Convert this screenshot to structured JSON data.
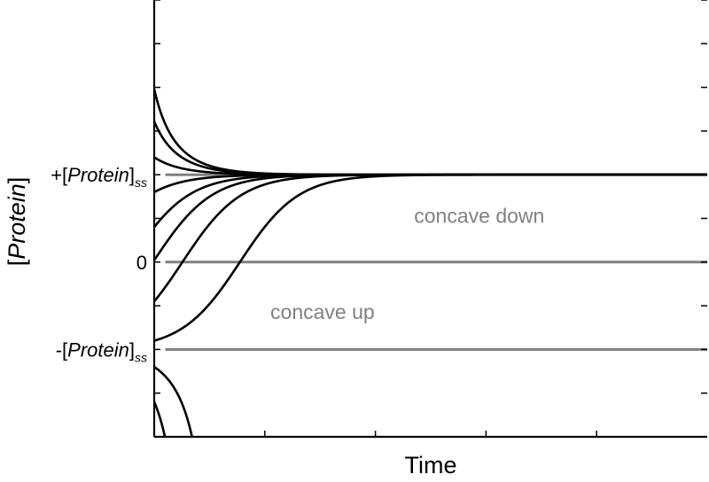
{
  "chart_data": {
    "type": "line",
    "title": "",
    "xlabel": "Time",
    "ylabel": "[Protein]",
    "xlim": [
      0,
      1
    ],
    "ylim": [
      -2,
      3
    ],
    "y_tick_labels": [
      {
        "value": 1,
        "prefix": "+[",
        "italic": "Protein",
        "suffix": "]",
        "sub": "ss"
      },
      {
        "value": 0,
        "text": "0"
      },
      {
        "value": -1,
        "prefix": "-[",
        "italic": "Protein",
        "suffix": "]",
        "sub": "ss"
      }
    ],
    "reference_lines": [
      {
        "y": 1,
        "color": "#808080"
      },
      {
        "y": 0,
        "color": "#808080"
      },
      {
        "y": -1,
        "color": "#808080"
      }
    ],
    "annotations": [
      {
        "text": "concave down",
        "x": 0.47,
        "y": 0.45,
        "color": "#808080"
      },
      {
        "text": "concave up",
        "x": 0.21,
        "y": -0.65,
        "color": "#808080"
      }
    ],
    "series": [
      {
        "y0": 1.98
      },
      {
        "y0": 1.61
      },
      {
        "y0": 1.2
      },
      {
        "y0": 0.8
      },
      {
        "y0": 0.4
      },
      {
        "y0": 0.02
      },
      {
        "y0": -0.45
      },
      {
        "y0": -0.9
      },
      {
        "y0": -1.2
      },
      {
        "y0": -1.6
      }
    ],
    "grid": false,
    "legend": "none"
  }
}
